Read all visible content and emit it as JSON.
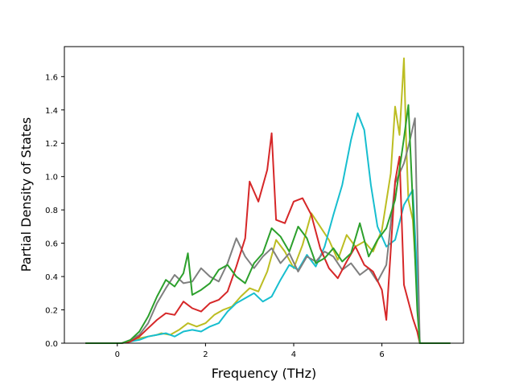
{
  "chart_data": {
    "type": "line",
    "title": "",
    "xlabel": "Frequency (THz)",
    "ylabel": "Partial Density of States",
    "xlim": [
      -1.2,
      7.85
    ],
    "ylim": [
      0.0,
      1.78
    ],
    "xticks": [
      0,
      2,
      4,
      6
    ],
    "yticks": [
      0.0,
      0.2,
      0.4,
      0.6,
      0.8,
      1.0,
      1.2,
      1.4,
      1.6
    ],
    "xtick_labels": [
      "0",
      "2",
      "4",
      "6"
    ],
    "ytick_labels": [
      "0.0",
      "0.2",
      "0.4",
      "0.6",
      "0.8",
      "1.0",
      "1.2",
      "1.4",
      "1.6"
    ],
    "grid": false,
    "legend": "none",
    "series": [
      {
        "color": "#bcbd22",
        "points": [
          [
            -0.72,
            0
          ],
          [
            0.1,
            0
          ],
          [
            0.3,
            0.01
          ],
          [
            0.5,
            0.03
          ],
          [
            0.7,
            0.04
          ],
          [
            0.9,
            0.05
          ],
          [
            1.0,
            0.06
          ],
          [
            1.2,
            0.05
          ],
          [
            1.4,
            0.08
          ],
          [
            1.6,
            0.12
          ],
          [
            1.8,
            0.1
          ],
          [
            2.0,
            0.12
          ],
          [
            2.2,
            0.17
          ],
          [
            2.4,
            0.2
          ],
          [
            2.6,
            0.22
          ],
          [
            2.8,
            0.28
          ],
          [
            3.0,
            0.33
          ],
          [
            3.2,
            0.31
          ],
          [
            3.4,
            0.43
          ],
          [
            3.6,
            0.62
          ],
          [
            3.8,
            0.55
          ],
          [
            4.0,
            0.45
          ],
          [
            4.2,
            0.59
          ],
          [
            4.4,
            0.78
          ],
          [
            4.6,
            0.7
          ],
          [
            4.8,
            0.62
          ],
          [
            5.0,
            0.5
          ],
          [
            5.2,
            0.65
          ],
          [
            5.4,
            0.58
          ],
          [
            5.6,
            0.61
          ],
          [
            5.8,
            0.55
          ],
          [
            6.0,
            0.68
          ],
          [
            6.2,
            1.02
          ],
          [
            6.3,
            1.42
          ],
          [
            6.4,
            1.25
          ],
          [
            6.5,
            1.71
          ],
          [
            6.55,
            1.2
          ],
          [
            6.6,
            0.86
          ],
          [
            6.7,
            0.74
          ],
          [
            6.8,
            0.3
          ],
          [
            6.86,
            0
          ],
          [
            7.55,
            0
          ]
        ]
      },
      {
        "color": "#17becf",
        "points": [
          [
            -0.72,
            0
          ],
          [
            0.1,
            0
          ],
          [
            0.3,
            0.01
          ],
          [
            0.5,
            0.02
          ],
          [
            0.7,
            0.04
          ],
          [
            0.9,
            0.05
          ],
          [
            1.1,
            0.06
          ],
          [
            1.3,
            0.04
          ],
          [
            1.5,
            0.07
          ],
          [
            1.7,
            0.08
          ],
          [
            1.9,
            0.07
          ],
          [
            2.1,
            0.1
          ],
          [
            2.3,
            0.12
          ],
          [
            2.5,
            0.19
          ],
          [
            2.7,
            0.24
          ],
          [
            2.9,
            0.27
          ],
          [
            3.1,
            0.3
          ],
          [
            3.3,
            0.25
          ],
          [
            3.5,
            0.28
          ],
          [
            3.7,
            0.38
          ],
          [
            3.9,
            0.47
          ],
          [
            4.1,
            0.44
          ],
          [
            4.3,
            0.53
          ],
          [
            4.5,
            0.46
          ],
          [
            4.7,
            0.58
          ],
          [
            4.9,
            0.77
          ],
          [
            5.1,
            0.95
          ],
          [
            5.3,
            1.22
          ],
          [
            5.45,
            1.38
          ],
          [
            5.6,
            1.28
          ],
          [
            5.75,
            0.95
          ],
          [
            5.9,
            0.7
          ],
          [
            6.1,
            0.58
          ],
          [
            6.3,
            0.62
          ],
          [
            6.5,
            0.83
          ],
          [
            6.7,
            0.92
          ],
          [
            6.8,
            0.4
          ],
          [
            6.86,
            0
          ],
          [
            7.55,
            0
          ]
        ]
      },
      {
        "color": "#7f7f7f",
        "points": [
          [
            -0.72,
            0
          ],
          [
            0.1,
            0
          ],
          [
            0.3,
            0.02
          ],
          [
            0.5,
            0.05
          ],
          [
            0.7,
            0.12
          ],
          [
            0.9,
            0.24
          ],
          [
            1.1,
            0.33
          ],
          [
            1.3,
            0.41
          ],
          [
            1.5,
            0.36
          ],
          [
            1.7,
            0.37
          ],
          [
            1.9,
            0.45
          ],
          [
            2.1,
            0.4
          ],
          [
            2.3,
            0.37
          ],
          [
            2.5,
            0.48
          ],
          [
            2.7,
            0.63
          ],
          [
            2.9,
            0.52
          ],
          [
            3.1,
            0.45
          ],
          [
            3.3,
            0.52
          ],
          [
            3.5,
            0.57
          ],
          [
            3.7,
            0.48
          ],
          [
            3.9,
            0.54
          ],
          [
            4.1,
            0.43
          ],
          [
            4.3,
            0.52
          ],
          [
            4.5,
            0.49
          ],
          [
            4.7,
            0.55
          ],
          [
            4.9,
            0.52
          ],
          [
            5.1,
            0.44
          ],
          [
            5.3,
            0.48
          ],
          [
            5.5,
            0.41
          ],
          [
            5.7,
            0.45
          ],
          [
            5.9,
            0.37
          ],
          [
            6.1,
            0.47
          ],
          [
            6.3,
            0.96
          ],
          [
            6.5,
            1.08
          ],
          [
            6.6,
            1.18
          ],
          [
            6.75,
            1.35
          ],
          [
            6.8,
            0.7
          ],
          [
            6.86,
            0
          ],
          [
            7.55,
            0
          ]
        ]
      },
      {
        "color": "#d62728",
        "points": [
          [
            -0.72,
            0
          ],
          [
            0.1,
            0
          ],
          [
            0.3,
            0.01
          ],
          [
            0.5,
            0.04
          ],
          [
            0.7,
            0.09
          ],
          [
            0.9,
            0.14
          ],
          [
            1.1,
            0.18
          ],
          [
            1.3,
            0.17
          ],
          [
            1.5,
            0.25
          ],
          [
            1.7,
            0.21
          ],
          [
            1.9,
            0.19
          ],
          [
            2.1,
            0.24
          ],
          [
            2.3,
            0.26
          ],
          [
            2.5,
            0.31
          ],
          [
            2.7,
            0.46
          ],
          [
            2.9,
            0.63
          ],
          [
            3.0,
            0.97
          ],
          [
            3.2,
            0.85
          ],
          [
            3.4,
            1.04
          ],
          [
            3.5,
            1.26
          ],
          [
            3.6,
            0.74
          ],
          [
            3.8,
            0.72
          ],
          [
            4.0,
            0.85
          ],
          [
            4.2,
            0.87
          ],
          [
            4.4,
            0.77
          ],
          [
            4.6,
            0.57
          ],
          [
            4.8,
            0.45
          ],
          [
            5.0,
            0.39
          ],
          [
            5.2,
            0.49
          ],
          [
            5.4,
            0.58
          ],
          [
            5.6,
            0.47
          ],
          [
            5.8,
            0.43
          ],
          [
            6.0,
            0.32
          ],
          [
            6.1,
            0.14
          ],
          [
            6.3,
            0.97
          ],
          [
            6.4,
            1.12
          ],
          [
            6.5,
            0.35
          ],
          [
            6.7,
            0.15
          ],
          [
            6.8,
            0.07
          ],
          [
            6.86,
            0
          ],
          [
            7.55,
            0
          ]
        ]
      },
      {
        "color": "#2ca02c",
        "points": [
          [
            -0.72,
            0
          ],
          [
            0.1,
            0
          ],
          [
            0.3,
            0.02
          ],
          [
            0.5,
            0.07
          ],
          [
            0.7,
            0.16
          ],
          [
            0.9,
            0.28
          ],
          [
            1.1,
            0.38
          ],
          [
            1.3,
            0.34
          ],
          [
            1.5,
            0.42
          ],
          [
            1.6,
            0.54
          ],
          [
            1.7,
            0.29
          ],
          [
            1.9,
            0.32
          ],
          [
            2.1,
            0.36
          ],
          [
            2.3,
            0.44
          ],
          [
            2.5,
            0.47
          ],
          [
            2.7,
            0.4
          ],
          [
            2.9,
            0.36
          ],
          [
            3.1,
            0.48
          ],
          [
            3.3,
            0.54
          ],
          [
            3.5,
            0.69
          ],
          [
            3.7,
            0.64
          ],
          [
            3.9,
            0.55
          ],
          [
            4.1,
            0.7
          ],
          [
            4.3,
            0.63
          ],
          [
            4.5,
            0.48
          ],
          [
            4.7,
            0.51
          ],
          [
            4.9,
            0.57
          ],
          [
            5.1,
            0.49
          ],
          [
            5.3,
            0.54
          ],
          [
            5.5,
            0.72
          ],
          [
            5.7,
            0.52
          ],
          [
            5.9,
            0.62
          ],
          [
            6.1,
            0.69
          ],
          [
            6.3,
            0.86
          ],
          [
            6.5,
            1.23
          ],
          [
            6.6,
            1.43
          ],
          [
            6.7,
            0.84
          ],
          [
            6.8,
            0.2
          ],
          [
            6.86,
            0
          ],
          [
            7.55,
            0
          ]
        ]
      }
    ]
  }
}
